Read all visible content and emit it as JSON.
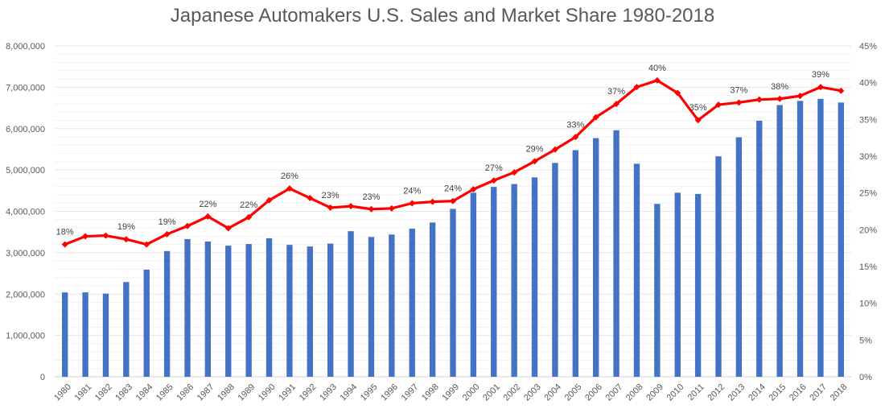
{
  "chart_data": {
    "type": "bar+line",
    "title": "Japanese Automakers U.S. Sales and Market Share 1980-2018",
    "categories": [
      "1980",
      "1981",
      "1982",
      "1983",
      "1984",
      "1985",
      "1986",
      "1987",
      "1988",
      "1989",
      "1990",
      "1991",
      "1992",
      "1993",
      "1994",
      "1995",
      "1996",
      "1997",
      "1998",
      "1999",
      "2000",
      "2001",
      "2002",
      "2003",
      "2004",
      "2005",
      "2006",
      "2007",
      "2008",
      "2009",
      "2010",
      "2011",
      "2012",
      "2013",
      "2014",
      "2015",
      "2016",
      "2017",
      "2018"
    ],
    "series": [
      {
        "kind": "bar",
        "axis": "left",
        "color": "#4472C4",
        "values": [
          2040000,
          2040000,
          2010000,
          2290000,
          2590000,
          3040000,
          3330000,
          3270000,
          3170000,
          3210000,
          3350000,
          3190000,
          3150000,
          3220000,
          3520000,
          3380000,
          3440000,
          3580000,
          3730000,
          4060000,
          4450000,
          4590000,
          4660000,
          4820000,
          5170000,
          5480000,
          5770000,
          5960000,
          5150000,
          4180000,
          4450000,
          4420000,
          5330000,
          5790000,
          6190000,
          6570000,
          6670000,
          6720000,
          6630000
        ]
      },
      {
        "kind": "line",
        "axis": "right",
        "color": "#FF0000",
        "values": [
          18.0,
          19.1,
          19.2,
          18.7,
          18.0,
          19.4,
          20.5,
          21.8,
          20.2,
          21.7,
          24.0,
          25.6,
          24.3,
          23.0,
          23.2,
          22.8,
          22.9,
          23.6,
          23.8,
          23.9,
          25.5,
          26.7,
          27.8,
          29.3,
          30.9,
          32.6,
          35.3,
          37.1,
          39.4,
          40.3,
          38.6,
          34.9,
          37.0,
          37.3,
          37.7,
          37.8,
          38.2,
          39.4,
          38.9
        ]
      }
    ],
    "data_labels": [
      {
        "category": "1980",
        "text": "18%"
      },
      {
        "category": "1983",
        "text": "19%"
      },
      {
        "category": "1985",
        "text": "19%"
      },
      {
        "category": "1987",
        "text": "22%"
      },
      {
        "category": "1989",
        "text": "22%"
      },
      {
        "category": "1991",
        "text": "26%"
      },
      {
        "category": "1993",
        "text": "23%"
      },
      {
        "category": "1995",
        "text": "23%"
      },
      {
        "category": "1997",
        "text": "24%"
      },
      {
        "category": "1999",
        "text": "24%"
      },
      {
        "category": "2001",
        "text": "27%"
      },
      {
        "category": "2003",
        "text": "29%"
      },
      {
        "category": "2005",
        "text": "33%"
      },
      {
        "category": "2007",
        "text": "37%"
      },
      {
        "category": "2009",
        "text": "40%"
      },
      {
        "category": "2011",
        "text": "35%"
      },
      {
        "category": "2013",
        "text": "37%"
      },
      {
        "category": "2015",
        "text": "38%"
      },
      {
        "category": "2017",
        "text": "39%"
      }
    ],
    "y_left": {
      "min": 0,
      "max": 8000000,
      "ticks": [
        0,
        1000000,
        2000000,
        3000000,
        4000000,
        5000000,
        6000000,
        7000000,
        8000000
      ],
      "tick_labels": [
        "0",
        "1,000,000",
        "2,000,000",
        "3,000,000",
        "4,000,000",
        "5,000,000",
        "6,000,000",
        "7,000,000",
        "8,000,000"
      ]
    },
    "y_right": {
      "min": 0,
      "max": 45,
      "ticks": [
        0,
        5,
        10,
        15,
        20,
        25,
        30,
        35,
        40,
        45
      ],
      "tick_labels": [
        "0%",
        "5%",
        "10%",
        "15%",
        "20%",
        "25%",
        "30%",
        "35%",
        "40%",
        "45%"
      ]
    },
    "grid": true,
    "legend": "none"
  }
}
